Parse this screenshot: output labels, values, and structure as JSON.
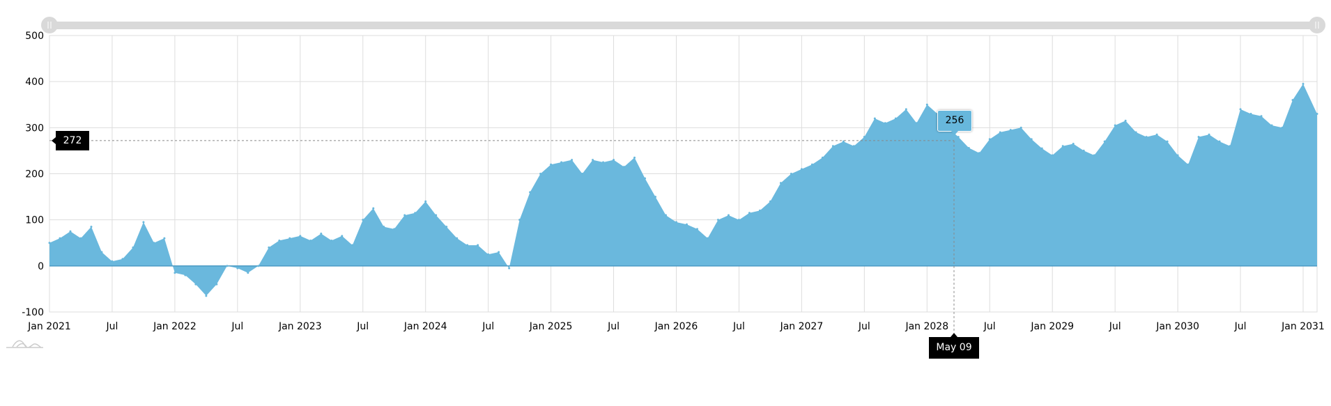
{
  "chart_data": {
    "type": "area",
    "title": "",
    "xlabel": "",
    "ylabel": "",
    "ylim": [
      -100,
      500
    ],
    "yticks": [
      "500",
      "400",
      "300",
      "200",
      "100",
      "0",
      "-100"
    ],
    "xticks": [
      "Jan 2021",
      "Jul",
      "Jan 2022",
      "Jul",
      "Jan 2023",
      "Jul",
      "Jan 2024",
      "Jul",
      "Jan 2025",
      "Jul",
      "Jan 2026",
      "Jul",
      "Jan 2027",
      "Jul",
      "Jan 2028",
      "Jul",
      "Jan 2029",
      "Jul",
      "Jan 2030",
      "Jul",
      "Jan 2031"
    ],
    "grid": true,
    "color": "#67b7dc",
    "x_start": "2021-01",
    "x_interval": "month",
    "values": [
      50,
      60,
      75,
      60,
      85,
      30,
      10,
      15,
      40,
      95,
      50,
      60,
      -15,
      -20,
      -40,
      -65,
      -40,
      0,
      -5,
      -15,
      0,
      40,
      55,
      60,
      65,
      55,
      70,
      55,
      65,
      45,
      100,
      125,
      85,
      80,
      110,
      115,
      140,
      110,
      85,
      60,
      45,
      45,
      25,
      30,
      -5,
      100,
      160,
      200,
      220,
      225,
      230,
      200,
      230,
      225,
      230,
      215,
      235,
      190,
      150,
      110,
      95,
      90,
      80,
      60,
      100,
      110,
      100,
      115,
      120,
      140,
      180,
      200,
      210,
      220,
      235,
      260,
      270,
      260,
      280,
      320,
      310,
      320,
      340,
      310,
      350,
      330,
      300,
      280,
      256,
      245,
      275,
      290,
      295,
      300,
      275,
      255,
      240,
      260,
      265,
      250,
      240,
      270,
      305,
      315,
      290,
      280,
      285,
      270,
      240,
      220,
      280,
      285,
      270,
      260,
      340,
      330,
      325,
      305,
      300,
      360,
      395,
      330
    ]
  },
  "cursor": {
    "value_label": "272",
    "date_label": "May 09",
    "balloon": "256"
  },
  "scrollbar": {
    "start": 0,
    "end": 1
  }
}
